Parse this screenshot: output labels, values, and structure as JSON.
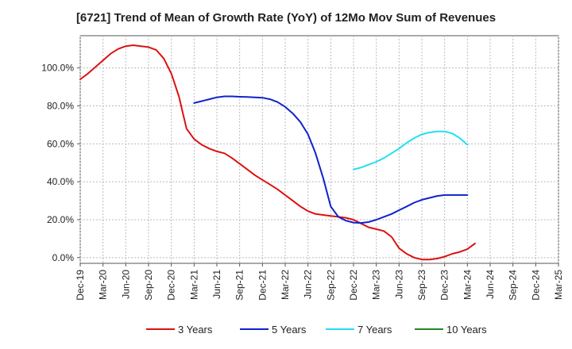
{
  "chart_data": {
    "type": "line",
    "title": "[6721]  Trend of Mean of Growth Rate (YoY) of 12Mo Mov Sum of Revenues",
    "xlabel": "",
    "ylabel": "",
    "ylim": [
      -3,
      117
    ],
    "y_ticks": [
      0,
      20,
      40,
      60,
      80,
      100
    ],
    "y_tick_labels": [
      "0.0%",
      "20.0%",
      "40.0%",
      "60.0%",
      "80.0%",
      "100.0%"
    ],
    "x_tick_labels": [
      "Dec-19",
      "Mar-20",
      "Jun-20",
      "Sep-20",
      "Dec-20",
      "Mar-21",
      "Jun-21",
      "Sep-21",
      "Dec-21",
      "Mar-22",
      "Jun-22",
      "Sep-22",
      "Dec-22",
      "Mar-23",
      "Jun-23",
      "Sep-23",
      "Dec-23",
      "Mar-24",
      "Jun-24",
      "Sep-24",
      "Dec-24",
      "Mar-25"
    ],
    "grid": true,
    "legend_position": "bottom",
    "series": [
      {
        "name": "3 Years",
        "color": "#dd1111",
        "points": [
          [
            0,
            94
          ],
          [
            1,
            97
          ],
          [
            2,
            100.5
          ],
          [
            3,
            104
          ],
          [
            4,
            107.5
          ],
          [
            5,
            110
          ],
          [
            6,
            111.5
          ],
          [
            7,
            112
          ],
          [
            8,
            111.5
          ],
          [
            9,
            111
          ],
          [
            10,
            109.5
          ],
          [
            11,
            105
          ],
          [
            12,
            97
          ],
          [
            13,
            85
          ],
          [
            14,
            68
          ],
          [
            15,
            62.5
          ],
          [
            16,
            59.5
          ],
          [
            17,
            57.5
          ],
          [
            18,
            56
          ],
          [
            19,
            55
          ],
          [
            20,
            52.5
          ],
          [
            21,
            49.5
          ],
          [
            22,
            46.5
          ],
          [
            23,
            43.5
          ],
          [
            24,
            41
          ],
          [
            25,
            38.5
          ],
          [
            26,
            36
          ],
          [
            27,
            33
          ],
          [
            28,
            30
          ],
          [
            29,
            27
          ],
          [
            30,
            24.5
          ],
          [
            31,
            23
          ],
          [
            32,
            22.5
          ],
          [
            33,
            22
          ],
          [
            34,
            21.5
          ],
          [
            35,
            21
          ],
          [
            36,
            20
          ],
          [
            37,
            18
          ],
          [
            38,
            16
          ],
          [
            39,
            15
          ],
          [
            40,
            14
          ],
          [
            41,
            11
          ],
          [
            42,
            5
          ],
          [
            43,
            2
          ],
          [
            44,
            0
          ],
          [
            45,
            -1
          ],
          [
            46,
            -1
          ],
          [
            47,
            -0.5
          ],
          [
            48,
            0.5
          ],
          [
            49,
            2
          ],
          [
            50,
            3
          ],
          [
            51,
            4.5
          ],
          [
            52,
            7.5
          ]
        ]
      },
      {
        "name": "5 Years",
        "color": "#1122cc",
        "points": [
          [
            15,
            81.5
          ],
          [
            16,
            82.5
          ],
          [
            17,
            83.5
          ],
          [
            18,
            84.5
          ],
          [
            19,
            85
          ],
          [
            20,
            85
          ],
          [
            21,
            84.8
          ],
          [
            22,
            84.7
          ],
          [
            23,
            84.5
          ],
          [
            24,
            84.3
          ],
          [
            25,
            83.5
          ],
          [
            26,
            82
          ],
          [
            27,
            79.5
          ],
          [
            28,
            76
          ],
          [
            29,
            71.5
          ],
          [
            30,
            65
          ],
          [
            31,
            55
          ],
          [
            32,
            42
          ],
          [
            33,
            27
          ],
          [
            34,
            21.5
          ],
          [
            35,
            19.5
          ],
          [
            36,
            18.5
          ],
          [
            37,
            18.3
          ],
          [
            38,
            18.8
          ],
          [
            39,
            20
          ],
          [
            40,
            21.5
          ],
          [
            41,
            23
          ],
          [
            42,
            25
          ],
          [
            43,
            27
          ],
          [
            44,
            29
          ],
          [
            45,
            30.5
          ],
          [
            46,
            31.5
          ],
          [
            47,
            32.5
          ],
          [
            48,
            33
          ],
          [
            49,
            33
          ],
          [
            50,
            33
          ],
          [
            51,
            33
          ]
        ]
      },
      {
        "name": "7 Years",
        "color": "#22e0f0",
        "points": [
          [
            36,
            46.5
          ],
          [
            37,
            47.5
          ],
          [
            38,
            49
          ],
          [
            39,
            50.5
          ],
          [
            40,
            52.5
          ],
          [
            41,
            55
          ],
          [
            42,
            57.5
          ],
          [
            43,
            60.5
          ],
          [
            44,
            63
          ],
          [
            45,
            65
          ],
          [
            46,
            66
          ],
          [
            47,
            66.5
          ],
          [
            48,
            66.5
          ],
          [
            49,
            65.5
          ],
          [
            50,
            63
          ],
          [
            51,
            59.5
          ]
        ]
      },
      {
        "name": "10 Years",
        "color": "#22882a",
        "points": []
      }
    ]
  }
}
